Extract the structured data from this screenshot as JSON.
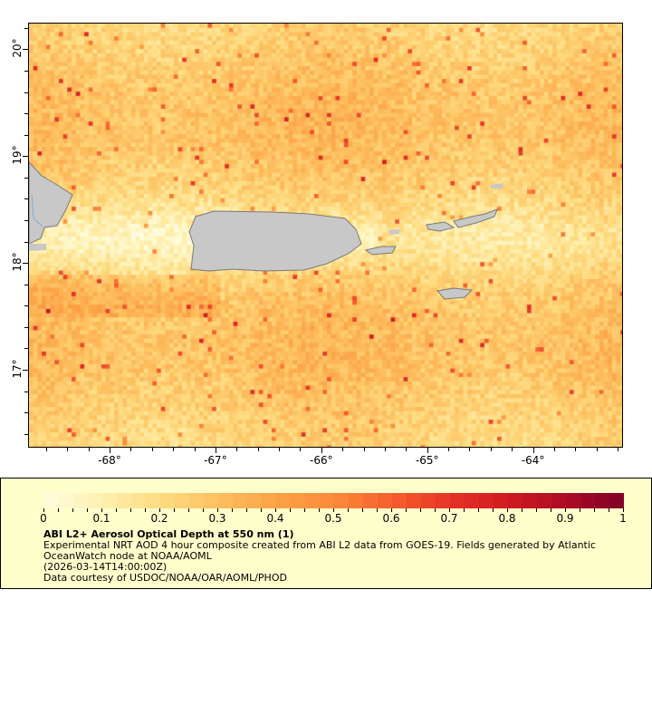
{
  "map": {
    "lon_range": [
      -68.77,
      -63.15
    ],
    "lat_range": [
      16.27,
      20.25
    ],
    "land_color": "#c8c8c8",
    "coast_color": "#7a7a7a",
    "river_color": "#7aaed6",
    "x_ticks": [
      {
        "value": -68,
        "label": "-68°"
      },
      {
        "value": -67,
        "label": "-67°"
      },
      {
        "value": -66,
        "label": "-66°"
      },
      {
        "value": -65,
        "label": "-65°"
      },
      {
        "value": -64,
        "label": "-64°"
      }
    ],
    "y_ticks": [
      {
        "value": 20,
        "label": "20°"
      },
      {
        "value": 19,
        "label": "19°"
      },
      {
        "value": 18,
        "label": "18°"
      },
      {
        "value": 17,
        "label": "17°"
      }
    ]
  },
  "legend": {
    "colorbar_range": [
      0,
      1
    ],
    "colorbar_colors": [
      "#fffde0",
      "#fff0b0",
      "#fedb80",
      "#fdbf60",
      "#fca245",
      "#fc8a3a",
      "#f75e2e",
      "#e63226",
      "#d01a20",
      "#ad0a26",
      "#800026"
    ],
    "tick_labels": [
      "0",
      "0.1",
      "0.2",
      "0.3",
      "0.4",
      "0.5",
      "0.6",
      "0.7",
      "0.8",
      "0.9",
      "1"
    ],
    "title": "ABI L2+ Aerosol Optical Depth at 550 nm (1)",
    "line1": "Experimental NRT AOD 4 hour composite created from ABI L2 data from GOES-19. Fields generated by Atlantic",
    "line2": "OceanWatch node at NOAA/AOML",
    "line3": "(2026-03-14T14:00:00Z)",
    "line4": "Data courtesy of USDOC/NOAA/OAR/AOML/PHOD"
  }
}
